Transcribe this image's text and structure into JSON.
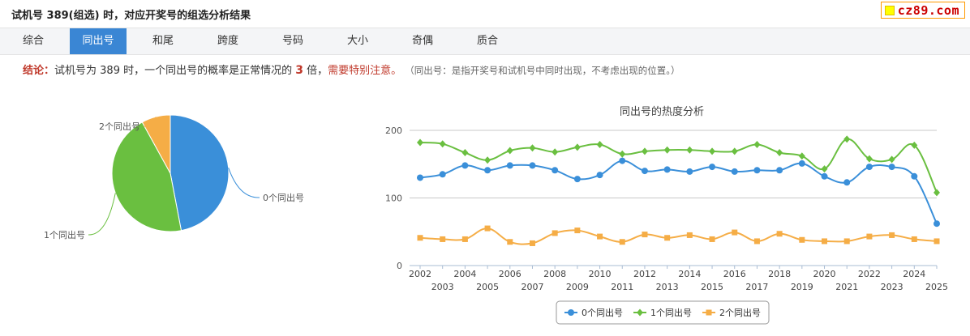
{
  "header": {
    "title": "试机号 389(组选) 时，对应开奖号的组选分析结果",
    "brand": "cz89.com"
  },
  "tabs": [
    {
      "label": "综合",
      "active": false
    },
    {
      "label": "同出号",
      "active": true
    },
    {
      "label": "和尾",
      "active": false
    },
    {
      "label": "跨度",
      "active": false
    },
    {
      "label": "号码",
      "active": false
    },
    {
      "label": "大小",
      "active": false
    },
    {
      "label": "奇偶",
      "active": false
    },
    {
      "label": "质合",
      "active": false
    }
  ],
  "conclusion": {
    "label": "结论：",
    "text1": "试机号为 389 时，一个同出号的概率是正常情况的",
    "multiple": "3",
    "text2": "倍，",
    "warning": "需要特别注意。",
    "note": "（同出号：是指开奖号和试机号中同时出现，不考虑出现的位置。）"
  },
  "colors": {
    "series0": "#3a8fd9",
    "series1": "#6abf40",
    "series2": "#f5ad46",
    "active_tab": "#3a86d4",
    "highlight": "#c0392b"
  },
  "chart_data": [
    {
      "type": "pie",
      "labels": [
        "0个同出号",
        "1个同出号",
        "2个同出号"
      ],
      "values": [
        47,
        45,
        8
      ]
    },
    {
      "type": "line",
      "title": "同出号的热度分析",
      "x": [
        2002,
        2003,
        2004,
        2005,
        2006,
        2007,
        2008,
        2009,
        2010,
        2011,
        2012,
        2013,
        2014,
        2015,
        2016,
        2017,
        2018,
        2019,
        2020,
        2021,
        2022,
        2023,
        2024,
        2025
      ],
      "ylim": [
        0,
        200
      ],
      "yticks": [
        0,
        100,
        200
      ],
      "grid": true,
      "legend": "bottom-center",
      "series": [
        {
          "name": "0个同出号",
          "marker": "circle",
          "values": [
            130,
            135,
            148,
            141,
            148,
            148,
            141,
            128,
            134,
            155,
            140,
            142,
            139,
            146,
            139,
            141,
            141,
            151,
            132,
            123,
            146,
            146,
            132,
            62
          ]
        },
        {
          "name": "1个同出号",
          "marker": "diamond",
          "values": [
            182,
            180,
            167,
            156,
            170,
            174,
            168,
            175,
            179,
            165,
            169,
            171,
            171,
            169,
            169,
            179,
            167,
            162,
            143,
            187,
            158,
            157,
            178,
            108
          ]
        },
        {
          "name": "2个同出号",
          "marker": "square",
          "values": [
            41,
            39,
            39,
            55,
            35,
            33,
            48,
            52,
            43,
            35,
            46,
            41,
            45,
            39,
            49,
            36,
            47,
            38,
            36,
            36,
            43,
            45,
            39,
            36
          ]
        }
      ]
    }
  ]
}
